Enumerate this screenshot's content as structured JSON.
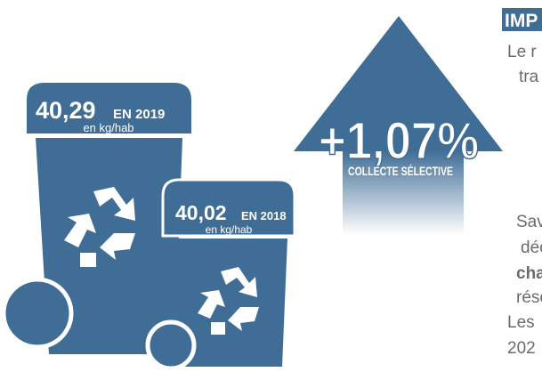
{
  "bin_2019": {
    "value": "40,29",
    "year": "EN 2019",
    "unit": "en kg/hab"
  },
  "bin_2018": {
    "value": "40,02",
    "year": "EN 2018",
    "unit": "en kg/hab"
  },
  "arrow": {
    "value": "+1,07%",
    "label": "COLLECTE SÉLECTIVE"
  },
  "side_text": {
    "heading": "IMP",
    "lines": [
      "Le r",
      "tra",
      "Sav",
      "déc",
      "cha",
      "rése",
      "Les",
      "202"
    ]
  }
}
